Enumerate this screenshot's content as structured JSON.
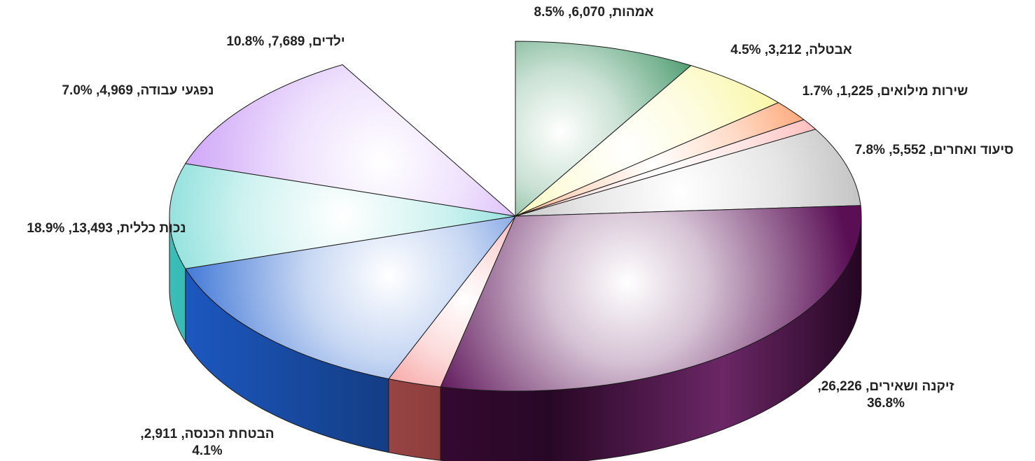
{
  "chart_data": {
    "type": "pie",
    "style": "3d-exploded-tilted",
    "title": "",
    "slices": [
      {
        "label": "אמהות",
        "value": 6070,
        "percent": "8.5%",
        "display": "אמהות, 6,070, 8.5%",
        "color": "#2e8b57"
      },
      {
        "label": "אבטלה",
        "value": 3212,
        "percent": "4.5%",
        "display": "אבטלה, 3,212, 4.5%",
        "color": "#f7f37a"
      },
      {
        "label": "שירות מילואים",
        "value": 1225,
        "percent": "1.7%",
        "display": "שירות מילואים, 1,225, 1.7%",
        "color": "#ff6a1a"
      },
      {
        "label": "",
        "value": 0,
        "percent": "",
        "display": "",
        "color": "#ff8a8a"
      },
      {
        "label": "סיעוד ואחרים",
        "value": 5552,
        "percent": "7.8%",
        "display": "סיעוד ואחרים, 5,552, 7.8%",
        "color": "#9a9a9a"
      },
      {
        "label": "זיקנה ושאירים",
        "value": 26226,
        "percent": "36.8%",
        "display_lines": [
          "זיקנה ושאירים, 26,226,",
          "36.8%"
        ],
        "color": "#5a0f55"
      },
      {
        "label": "הבטחת הכנסה",
        "value": 2911,
        "percent": "4.1%",
        "display_lines": [
          "הבטחת הכנסה, 2,911,",
          "4.1%"
        ],
        "color": "#f26a6a"
      },
      {
        "label": "נכות כללית",
        "value": 13493,
        "percent": "18.9%",
        "display": "נכות כללית, 13,493, 18.9%",
        "color": "#1f5fcf"
      },
      {
        "label": "נפגעי עבודה",
        "value": 4969,
        "percent": "7.0%",
        "display": "נפגעי עבודה, 4,969, 7.0%",
        "color": "#3cc9c2"
      },
      {
        "label": "ילדים",
        "value": 7689,
        "percent": "10.8%",
        "display": "ילדים, 7,689, 10.8%",
        "color": "#c08af5"
      }
    ],
    "legend": "none"
  }
}
